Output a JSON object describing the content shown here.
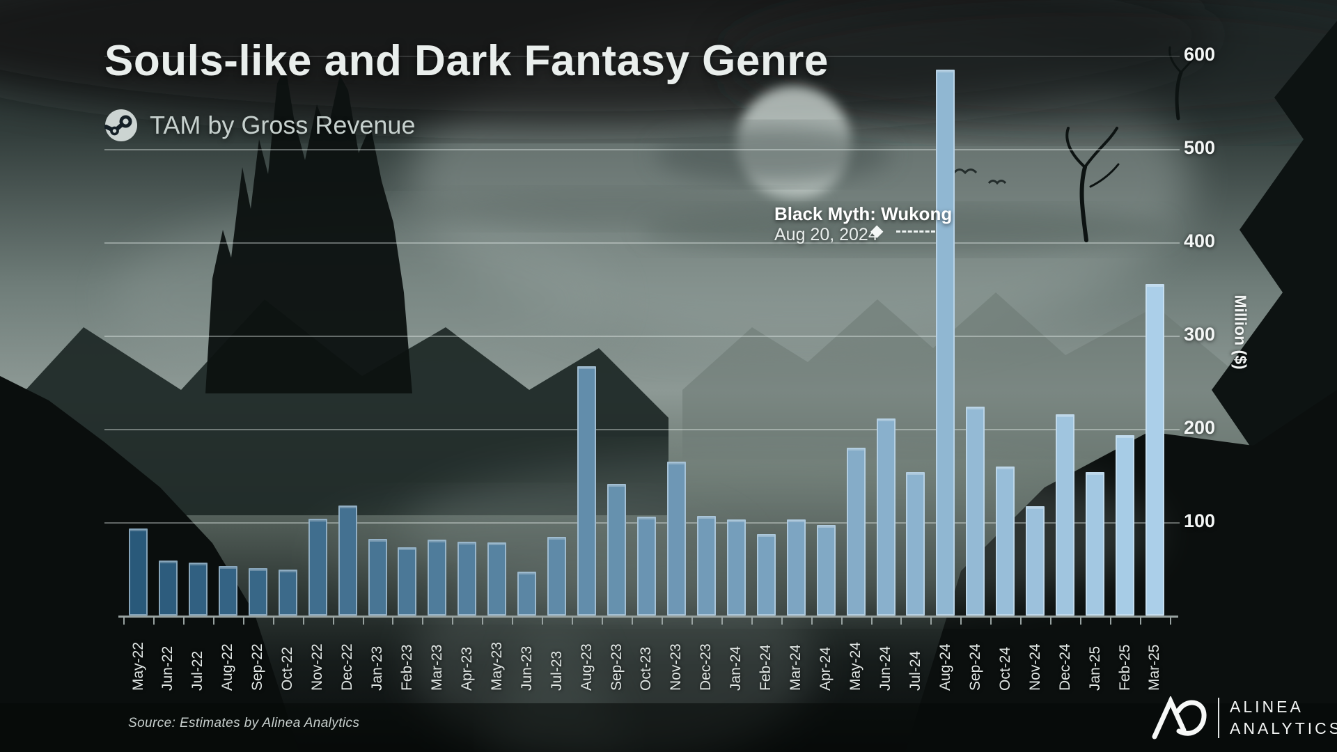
{
  "header": {
    "title": "Souls-like and Dark Fantasy Genre",
    "subtitle": "TAM by Gross Revenue",
    "subtitle_icon": "steam-icon"
  },
  "annotation": {
    "title": "Black Myth: Wukong",
    "date": "Aug 20, 2024",
    "marker": "◆",
    "points_to": "Aug-24"
  },
  "y_axis": {
    "label": "Million ($)",
    "ticks": [
      100,
      200,
      300,
      400,
      500,
      600
    ]
  },
  "source": {
    "text": "Source: Estimates by Alinea Analytics"
  },
  "logo": {
    "mark": "AC",
    "line1": "ALINEA",
    "line2": "ANALYTICS"
  },
  "colors": {
    "bar_start": "#29597a",
    "bar_end": "#abcfe9",
    "bar_border": "rgba(224,238,248,0.5)",
    "grid": "rgba(240,246,245,0.38)",
    "axis": "#98a2a0",
    "title_text": "#e9eeec",
    "annotation_text": "#ffffff"
  },
  "chart_data": {
    "type": "bar",
    "title": "Souls-like and Dark Fantasy Genre",
    "subtitle": "TAM by Gross Revenue",
    "ylabel": "Million ($)",
    "ylim": [
      0,
      620
    ],
    "yticks": [
      100,
      200,
      300,
      400,
      500,
      600
    ],
    "grid": true,
    "categories": [
      "May-22",
      "Jun-22",
      "Jul-22",
      "Aug-22",
      "Sep-22",
      "Oct-22",
      "Nov-22",
      "Dec-22",
      "Jan-23",
      "Feb-23",
      "Mar-23",
      "Apr-23",
      "May-23",
      "Jun-23",
      "Jul-23",
      "Aug-23",
      "Sep-23",
      "Oct-23",
      "Nov-23",
      "Dec-23",
      "Jan-24",
      "Feb-24",
      "Mar-24",
      "Apr-24",
      "May-24",
      "Jun-24",
      "Jul-24",
      "Aug-24",
      "Sep-24",
      "Oct-24",
      "Nov-24",
      "Dec-24",
      "Jan-25",
      "Feb-25",
      "Mar-25"
    ],
    "values": [
      93,
      59,
      57,
      53,
      51,
      49,
      104,
      118,
      82,
      73,
      81,
      79,
      78,
      47,
      84,
      267,
      141,
      106,
      165,
      107,
      103,
      87,
      103,
      97,
      180,
      211,
      154,
      585,
      224,
      160,
      117,
      216,
      154,
      193,
      355
    ],
    "annotation": {
      "label": "Black Myth: Wukong",
      "date": "Aug 20, 2024",
      "category": "Aug-24"
    }
  }
}
